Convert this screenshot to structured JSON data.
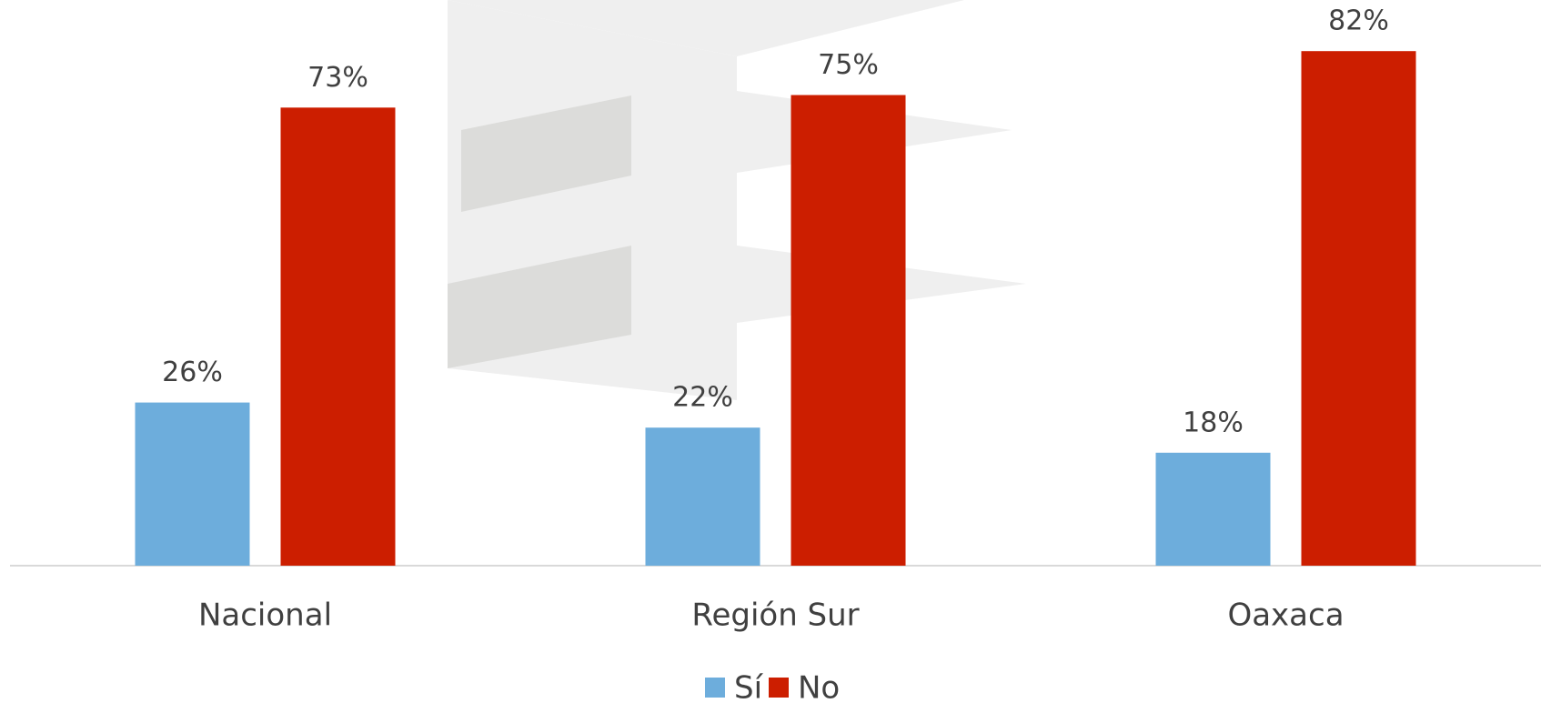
{
  "chart_data": {
    "type": "bar",
    "categories": [
      "Nacional",
      "Región Sur",
      "Oaxaca"
    ],
    "series": [
      {
        "name": "Sí",
        "color": "#6daddc",
        "values": [
          26,
          22,
          18
        ],
        "value_labels": [
          "26%",
          "22%",
          "18%"
        ]
      },
      {
        "name": "No",
        "color": "#cc1e00",
        "values": [
          73,
          75,
          82
        ],
        "value_labels": [
          "73%",
          "75%",
          "82%"
        ]
      }
    ],
    "legend": "bottom"
  }
}
